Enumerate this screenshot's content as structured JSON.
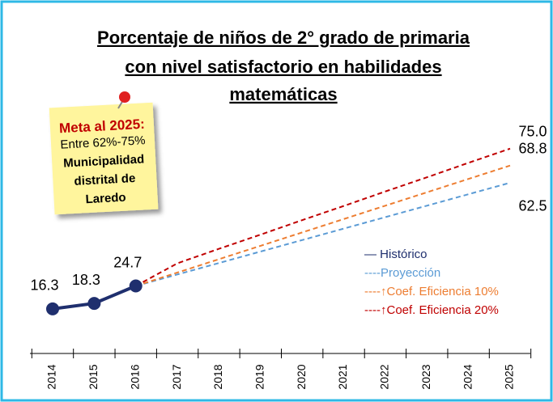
{
  "chart_data": {
    "type": "line",
    "title": [
      "Porcentaje de niños de 2° grado de primaria",
      "con nivel satisfactorio en habilidades",
      "matemáticas"
    ],
    "x": [
      "2014",
      "2015",
      "2016",
      "2017",
      "2018",
      "2019",
      "2020",
      "2021",
      "2022",
      "2023",
      "2024",
      "2025"
    ],
    "ylim": [
      5,
      85
    ],
    "series": [
      {
        "name": "— Histórico",
        "color": "#1f2f6e",
        "dash": "none",
        "markers": true,
        "values": [
          16.3,
          18.3,
          24.7,
          null,
          null,
          null,
          null,
          null,
          null,
          null,
          null,
          null
        ],
        "value_labels": [
          "16.3",
          "18.3",
          "24.7",
          null,
          null,
          null,
          null,
          null,
          null,
          null,
          null,
          null
        ]
      },
      {
        "name": "----Proyección",
        "color": "#5b9bd5",
        "dash": "6 4",
        "markers": false,
        "values": [
          null,
          null,
          24.7,
          28.9,
          33.1,
          37.3,
          41.5,
          45.7,
          49.9,
          54.1,
          58.3,
          62.5
        ],
        "value_labels": [
          null,
          null,
          null,
          null,
          null,
          null,
          null,
          null,
          null,
          null,
          null,
          "62.5"
        ]
      },
      {
        "name": "----↑Coef. Eficiencia 10%",
        "color": "#ed7d31",
        "dash": "6 4",
        "markers": false,
        "values": [
          null,
          null,
          24.7,
          29.6,
          34.5,
          39.4,
          44.3,
          49.2,
          54.1,
          59.0,
          63.9,
          68.8
        ],
        "value_labels": [
          null,
          null,
          null,
          null,
          null,
          null,
          null,
          null,
          null,
          null,
          null,
          "68.8"
        ]
      },
      {
        "name": "----↑Coef. Eficiencia 20%",
        "color": "#c00000",
        "dash": "6 4",
        "markers": false,
        "values": [
          null,
          null,
          24.7,
          33.0,
          38.3,
          43.5,
          48.8,
          54.0,
          59.3,
          64.5,
          69.8,
          75.0
        ],
        "value_labels": [
          null,
          null,
          null,
          null,
          null,
          null,
          null,
          null,
          null,
          null,
          null,
          "75.0"
        ]
      }
    ],
    "note": [
      "Meta al 2025:",
      "Entre 62%-75%",
      "Municipalidad",
      "distrital de",
      "Laredo"
    ]
  }
}
